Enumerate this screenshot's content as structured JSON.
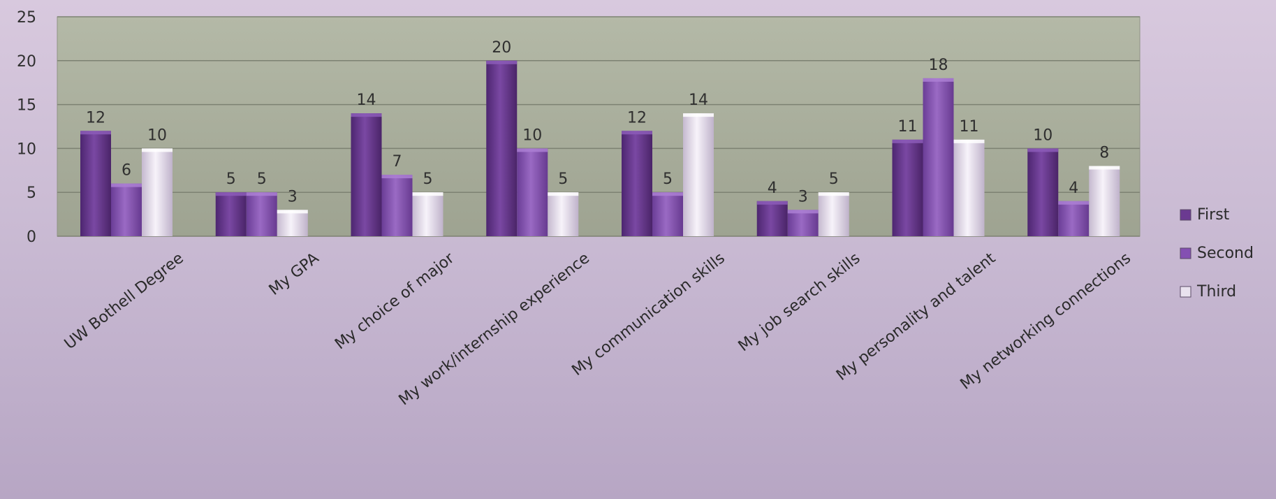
{
  "chart_data": {
    "type": "bar",
    "title": "",
    "xlabel": "",
    "ylabel": "",
    "ylim": [
      0,
      25
    ],
    "yticks": [
      0,
      5,
      10,
      15,
      20,
      25
    ],
    "grid": true,
    "legend_position": "right",
    "categories": [
      "UW Bothell Degree",
      "My GPA",
      "My choice of major",
      "My work/internship experience",
      "My communication skills",
      "My job search skills",
      "My personality and talent",
      "My networking connections"
    ],
    "series": [
      {
        "name": "First",
        "values": [
          12,
          5,
          14,
          20,
          12,
          4,
          11,
          10
        ]
      },
      {
        "name": "Second",
        "values": [
          6,
          5,
          7,
          10,
          5,
          3,
          18,
          4
        ]
      },
      {
        "name": "Third",
        "values": [
          10,
          3,
          5,
          5,
          14,
          5,
          11,
          8
        ]
      }
    ],
    "colors": {
      "First": "#6b3a91",
      "Second": "#8450b2",
      "Third": "#e9e2ee",
      "plot_background": "#a9ae9c",
      "gridline": "#7d8272"
    }
  }
}
